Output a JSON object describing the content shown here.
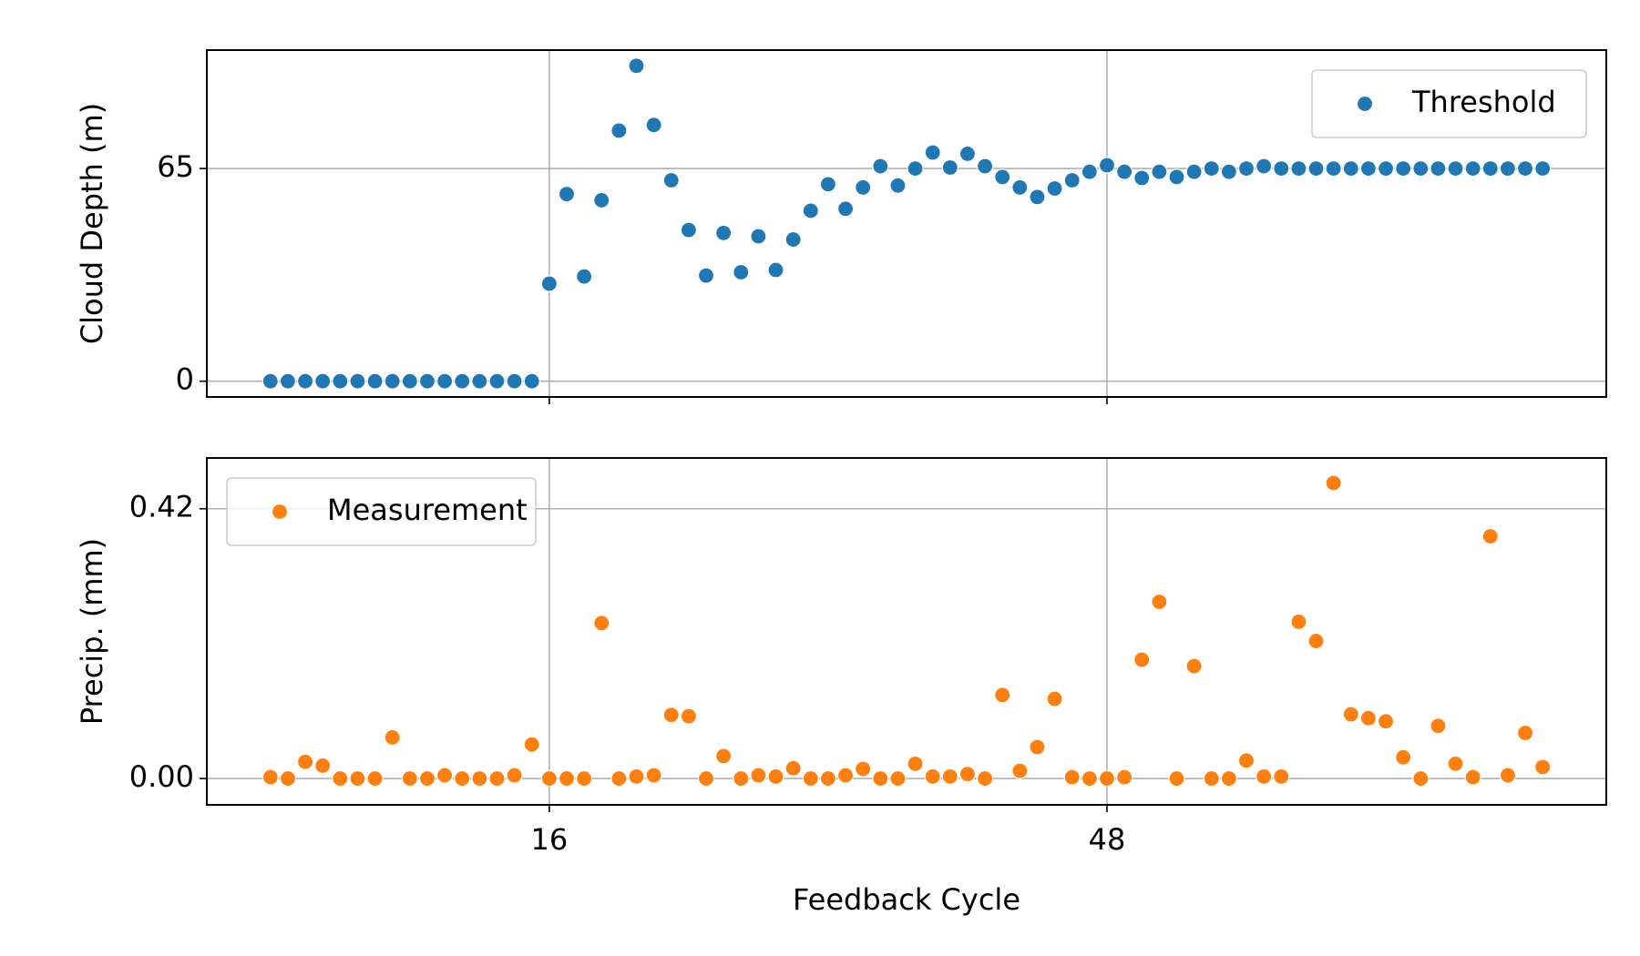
{
  "chart_data": [
    {
      "type": "scatter",
      "ylabel": "Cloud Depth (m)",
      "x": [
        0,
        1,
        2,
        3,
        4,
        5,
        6,
        7,
        8,
        9,
        10,
        11,
        12,
        13,
        14,
        15,
        16,
        17,
        18,
        19,
        20,
        21,
        22,
        23,
        24,
        25,
        26,
        27,
        28,
        29,
        30,
        31,
        32,
        33,
        34,
        35,
        36,
        37,
        38,
        39,
        40,
        41,
        42,
        43,
        44,
        45,
        46,
        47,
        48,
        49,
        50,
        51,
        52,
        53,
        54,
        55,
        56,
        57,
        58,
        59,
        60,
        61,
        62,
        63,
        64,
        65,
        66,
        67,
        68,
        69,
        70,
        71,
        72,
        73
      ],
      "series": [
        {
          "name": "Threshold",
          "color": "#1f77b4",
          "values": [
            0,
            0,
            0,
            0,
            0,
            0,
            0,
            0,
            0,
            0,
            0,
            0,
            0,
            0,
            0,
            0,
            29.8,
            57.2,
            32.0,
            55.3,
            76.6,
            96.4,
            78.3,
            61.4,
            46.2,
            32.3,
            45.3,
            33.3,
            44.3,
            34.0,
            43.3,
            52.1,
            60.2,
            52.7,
            59.2,
            65.7,
            59.8,
            65.0,
            69.9,
            65.3,
            69.5,
            65.7,
            62.4,
            59.2,
            56.3,
            58.9,
            61.4,
            64.0,
            66.0,
            64.0,
            62.1,
            64.0,
            62.4,
            64.0,
            65.0,
            64.0,
            65.0,
            65.7,
            65.0,
            65.0,
            65.0,
            65.0,
            65.0,
            65.0,
            65.0,
            65.0,
            65.0,
            65.0,
            65.0,
            65.0,
            65.0,
            65.0,
            65.0,
            65.0
          ]
        }
      ],
      "xlim": [
        -3.65,
        76.65
      ],
      "xticks": [
        16,
        48
      ],
      "ylim": [
        -4.82,
        101.2
      ],
      "yticks": [
        0,
        65
      ],
      "grid": true,
      "legend": "upper right"
    },
    {
      "type": "scatter",
      "xlabel": "Feedback Cycle",
      "ylabel": "Precip. (mm)",
      "x": [
        0,
        1,
        2,
        3,
        4,
        5,
        6,
        7,
        8,
        9,
        10,
        11,
        12,
        13,
        14,
        15,
        16,
        17,
        18,
        19,
        20,
        21,
        22,
        23,
        24,
        25,
        26,
        27,
        28,
        29,
        30,
        31,
        32,
        33,
        34,
        35,
        36,
        37,
        38,
        39,
        40,
        41,
        42,
        43,
        44,
        45,
        46,
        47,
        48,
        49,
        50,
        51,
        52,
        53,
        54,
        55,
        56,
        57,
        58,
        59,
        60,
        61,
        62,
        63,
        64,
        65,
        66,
        67,
        68,
        69,
        70,
        71,
        72,
        73
      ],
      "series": [
        {
          "name": "Measurement",
          "color": "#ff7f0e",
          "values": [
            0.002,
            0,
            0.026,
            0.02,
            0,
            0,
            0,
            0.064,
            0,
            0,
            0.005,
            0,
            0,
            0,
            0.005,
            0.053,
            0,
            0,
            0,
            0.242,
            0,
            0.003,
            0.005,
            0.099,
            0.097,
            0,
            0.035,
            0,
            0.005,
            0.003,
            0.016,
            0,
            0,
            0.005,
            0.015,
            0,
            0,
            0.023,
            0.003,
            0.003,
            0.007,
            0,
            0.13,
            0.012,
            0.049,
            0.124,
            0.002,
            0,
            0,
            0.002,
            0.185,
            0.275,
            0,
            0.175,
            0,
            0,
            0.028,
            0.003,
            0.003,
            0.244,
            0.214,
            0.46,
            0.1,
            0.094,
            0.089,
            0.033,
            0,
            0.082,
            0.023,
            0.002,
            0.377,
            0.005,
            0.071,
            0.018
          ]
        }
      ],
      "xlim": [
        -3.65,
        76.65
      ],
      "xticks": [
        16,
        48
      ],
      "ylim": [
        -0.041,
        0.499
      ],
      "yticks": [
        {
          "value": 0,
          "label": "0.00"
        },
        {
          "value": 0.42,
          "label": "0.42"
        }
      ],
      "grid": true,
      "legend": "upper left"
    }
  ]
}
